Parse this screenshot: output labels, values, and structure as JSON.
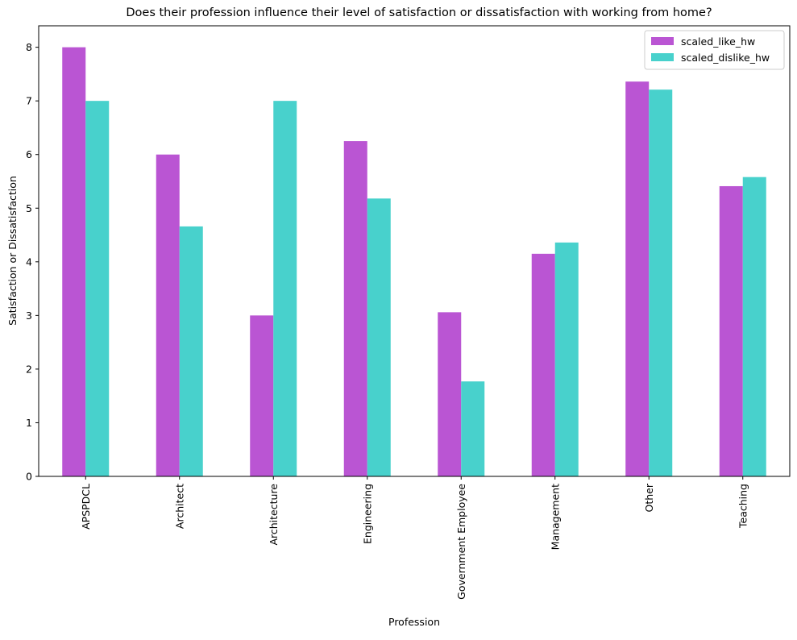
{
  "chart_data": {
    "type": "bar",
    "title": "Does their profession influence their level of satisfaction or dissatisfaction with working from home?",
    "xlabel": "Profession",
    "ylabel": "Satisfaction or Dissatisfaction",
    "categories": [
      "APSPDCL",
      "Architect",
      "Architecture",
      "Engineering",
      "Government Employee",
      "Management",
      "Other",
      "Teaching"
    ],
    "series": [
      {
        "name": "scaled_like_hw",
        "color": "#BA55D3",
        "values": [
          8.0,
          6.0,
          3.0,
          6.25,
          3.06,
          4.15,
          7.36,
          5.41
        ]
      },
      {
        "name": "scaled_dislike_hw",
        "color": "#48D1CC",
        "values": [
          7.0,
          4.66,
          7.0,
          5.18,
          1.77,
          4.36,
          7.21,
          5.58
        ]
      }
    ],
    "ylim": [
      0,
      8.4
    ],
    "yticks": [
      0,
      1,
      2,
      3,
      4,
      5,
      6,
      7,
      8
    ],
    "grid": false,
    "legend": "top-right"
  }
}
